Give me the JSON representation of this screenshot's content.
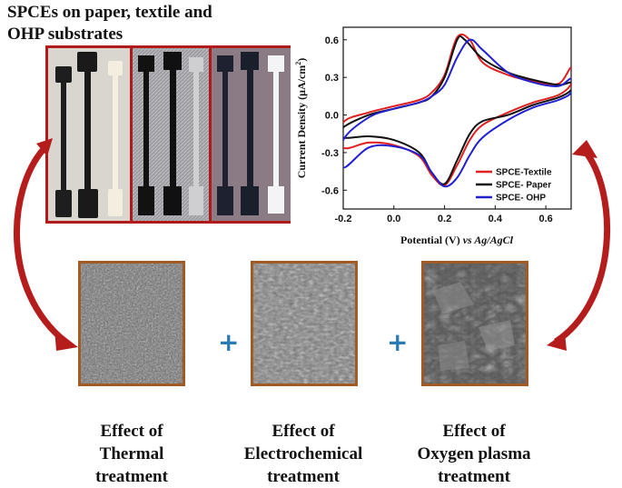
{
  "title": {
    "line1": "SPCEs on paper, textile and",
    "line2": "OHP substrates"
  },
  "captions": [
    {
      "line1": "Effect of",
      "line2": "Thermal",
      "line3": "treatment"
    },
    {
      "line1": "Effect of",
      "line2": "Electrochemical",
      "line3": "treatment"
    },
    {
      "line1": "Effect of",
      "line2": "Oxygen plasma",
      "line3": "treatment"
    }
  ],
  "plus_sign": "+",
  "colors": {
    "frame_red": "#b01a1a",
    "frame_brown": "#a25a24",
    "arrow_red": "#b51d1d",
    "plus_blue": "#2a7bb5"
  },
  "chart_data": {
    "type": "line",
    "xlabel_main": "Potential (V)",
    "xlabel_italic": "vs Ag/AgCl",
    "ylabel": "Current Density (μA/cm",
    "ylabel_sup": "2",
    "ylabel_close": ")",
    "xlim": [
      -0.2,
      0.7
    ],
    "ylim": [
      -0.75,
      0.7
    ],
    "xticks": [
      "-0.2",
      "0.0",
      "0.2",
      "0.4",
      "0.6"
    ],
    "xtick_values": [
      -0.2,
      0.0,
      0.2,
      0.4,
      0.6
    ],
    "yticks": [
      "0.6",
      "0.3",
      "0.0",
      "-0.3",
      "-0.6"
    ],
    "ytick_values": [
      0.6,
      0.3,
      0.0,
      -0.3,
      -0.6
    ],
    "legend_position": "bottom-right",
    "series": [
      {
        "name": "SPCE-Textile",
        "color": "#e02020",
        "x": [
          -0.2,
          -0.1,
          0.0,
          0.1,
          0.15,
          0.2,
          0.25,
          0.3,
          0.35,
          0.45,
          0.55,
          0.65,
          0.7,
          0.7,
          0.65,
          0.55,
          0.45,
          0.35,
          0.3,
          0.25,
          0.2,
          0.15,
          0.1,
          0.0,
          -0.1,
          -0.2
        ],
        "y": [
          -0.06,
          0.02,
          0.07,
          0.12,
          0.18,
          0.32,
          0.62,
          0.6,
          0.42,
          0.32,
          0.27,
          0.25,
          0.38,
          0.25,
          0.16,
          0.1,
          0.02,
          -0.08,
          -0.2,
          -0.4,
          -0.56,
          -0.48,
          -0.33,
          -0.24,
          -0.22,
          -0.26
        ]
      },
      {
        "name": "SPCE- Paper",
        "color": "#111111",
        "x": [
          -0.2,
          -0.1,
          0.0,
          0.1,
          0.15,
          0.2,
          0.25,
          0.28,
          0.35,
          0.45,
          0.55,
          0.65,
          0.7,
          0.7,
          0.65,
          0.55,
          0.45,
          0.35,
          0.3,
          0.25,
          0.2,
          0.15,
          0.1,
          0.0,
          -0.1,
          -0.2
        ],
        "y": [
          -0.1,
          0.0,
          0.05,
          0.1,
          0.15,
          0.3,
          0.6,
          0.6,
          0.45,
          0.34,
          0.28,
          0.24,
          0.26,
          0.2,
          0.14,
          0.08,
          0.0,
          -0.05,
          -0.15,
          -0.36,
          -0.55,
          -0.46,
          -0.3,
          -0.2,
          -0.17,
          -0.18
        ]
      },
      {
        "name": "SPCE- OHP",
        "color": "#2020d0",
        "x": [
          -0.2,
          -0.1,
          0.0,
          0.1,
          0.15,
          0.2,
          0.25,
          0.3,
          0.35,
          0.45,
          0.55,
          0.65,
          0.7,
          0.7,
          0.65,
          0.55,
          0.45,
          0.35,
          0.3,
          0.25,
          0.2,
          0.15,
          0.1,
          0.0,
          -0.1,
          -0.2
        ],
        "y": [
          -0.2,
          -0.02,
          0.05,
          0.1,
          0.15,
          0.24,
          0.46,
          0.6,
          0.52,
          0.34,
          0.26,
          0.23,
          0.29,
          0.18,
          0.12,
          0.06,
          -0.04,
          -0.18,
          -0.32,
          -0.5,
          -0.57,
          -0.46,
          -0.32,
          -0.25,
          -0.26,
          -0.42
        ]
      }
    ]
  }
}
